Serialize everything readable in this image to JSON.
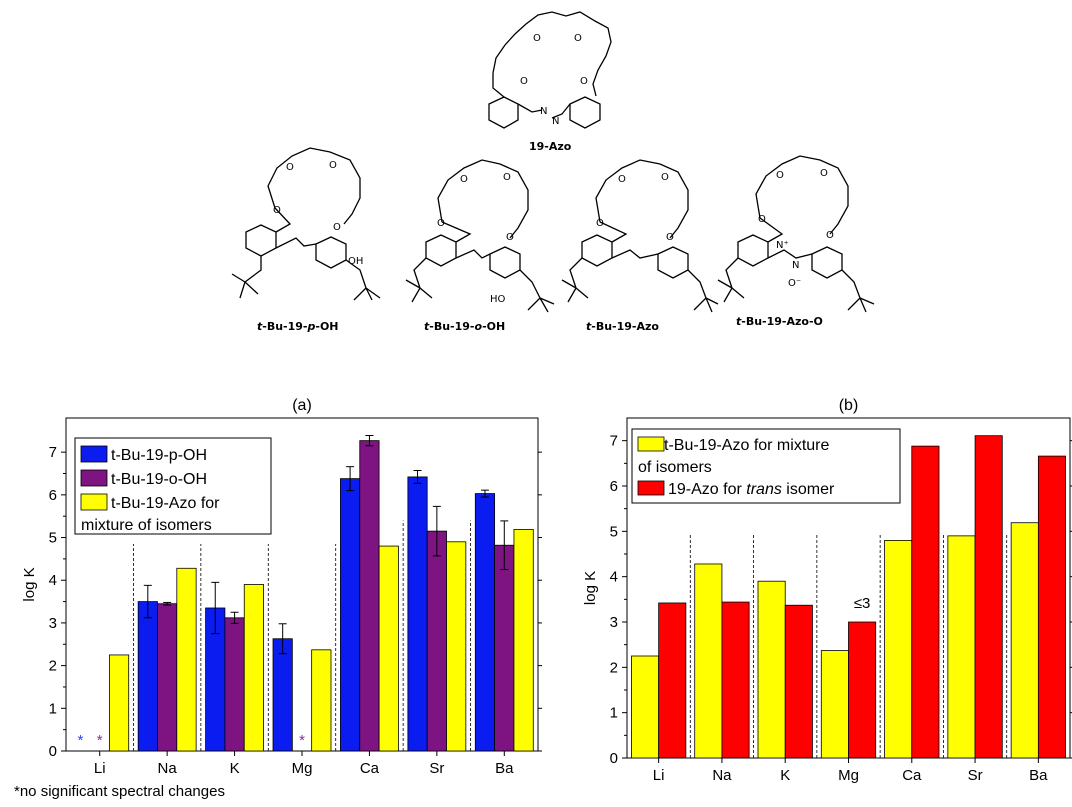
{
  "structures": {
    "top": {
      "name": "19-Azo"
    },
    "row": [
      {
        "prefix": "t",
        "mid": "-Bu-19-",
        "italic2": "p",
        "suffix": "-OH"
      },
      {
        "prefix": "t",
        "mid": "-Bu-19-",
        "italic2": "o",
        "suffix": "-OH"
      },
      {
        "prefix": "t",
        "mid": "-Bu-19-Azo",
        "italic2": "",
        "suffix": ""
      },
      {
        "prefix": "t",
        "mid": "-Bu-19-Azo-O",
        "italic2": "",
        "suffix": ""
      }
    ],
    "atoms": {
      "oxygen": "O",
      "hydroxyl": "OH",
      "hydroxyl_rev": "HO",
      "nitrogen": "N",
      "n_plus": "N⁺",
      "o_minus": "O⁻"
    }
  },
  "footnote": "*no significant spectral changes",
  "chart_data": [
    {
      "type": "bar",
      "title": "(a)",
      "ylabel": "log K",
      "xlabel": "",
      "ylim": [
        0,
        7.8
      ],
      "yticks": [
        "0",
        "1",
        "2",
        "3",
        "4",
        "5",
        "6",
        "7"
      ],
      "categories": [
        "Li",
        "Na",
        "K",
        "Mg",
        "Ca",
        "Sr",
        "Ba"
      ],
      "legend_position": "top-left",
      "series": [
        {
          "name": "t-Bu-19-p-OH",
          "color": "#0a1cf0",
          "values": [
            null,
            3.5,
            3.35,
            2.63,
            6.38,
            6.42,
            6.03
          ],
          "errors": [
            null,
            0.38,
            0.6,
            0.35,
            0.28,
            0.15,
            0.08
          ]
        },
        {
          "name": "t-Bu-19-o-OH",
          "color": "#7e1382",
          "values": [
            null,
            3.45,
            3.12,
            null,
            7.27,
            5.15,
            4.82
          ],
          "errors": [
            null,
            0.03,
            0.13,
            null,
            0.12,
            0.58,
            0.57
          ]
        },
        {
          "name": "t-Bu-19-Azo for mixture of isomers",
          "legend_lines": [
            "t-Bu-19-Azo for",
            "mixture of isomers"
          ],
          "color": "#ffff00",
          "values": [
            2.25,
            4.28,
            3.9,
            2.37,
            4.8,
            4.9,
            5.19
          ],
          "errors": [
            null,
            null,
            null,
            null,
            null,
            null,
            null
          ]
        }
      ],
      "markers": [
        {
          "category": "Li",
          "series": 0,
          "text": "*",
          "color": "#3344ee"
        },
        {
          "category": "Li",
          "series": 1,
          "text": "*",
          "color": "#8a2a9a"
        },
        {
          "category": "Mg",
          "series": 1,
          "text": "*",
          "color": "#8a2a9a"
        }
      ]
    },
    {
      "type": "bar",
      "title": "(b)",
      "ylabel": "log K",
      "xlabel": "",
      "ylim": [
        0,
        7.5
      ],
      "yticks": [
        "0",
        "1",
        "2",
        "3",
        "4",
        "5",
        "6",
        "7"
      ],
      "categories": [
        "Li",
        "Na",
        "K",
        "Mg",
        "Ca",
        "Sr",
        "Ba"
      ],
      "legend_position": "top-left",
      "series": [
        {
          "name": "t-Bu-19-Azo for mixture of isomers",
          "legend_lines": [
            "t-Bu-19-Azo for mixture",
            "of isomers"
          ],
          "color": "#ffff00",
          "values": [
            2.25,
            4.28,
            3.9,
            2.37,
            4.8,
            4.9,
            5.19
          ]
        },
        {
          "name": "19-Azo for trans isomer",
          "legend_lines": [
            "19-Azo for ",
            "trans",
            " isomer"
          ],
          "color": "#ff0000",
          "values": [
            3.42,
            3.44,
            3.37,
            3.0,
            6.88,
            7.11,
            6.66
          ]
        }
      ],
      "annotations": [
        {
          "category": "Mg",
          "series": 1,
          "text": "≤3"
        }
      ]
    }
  ]
}
